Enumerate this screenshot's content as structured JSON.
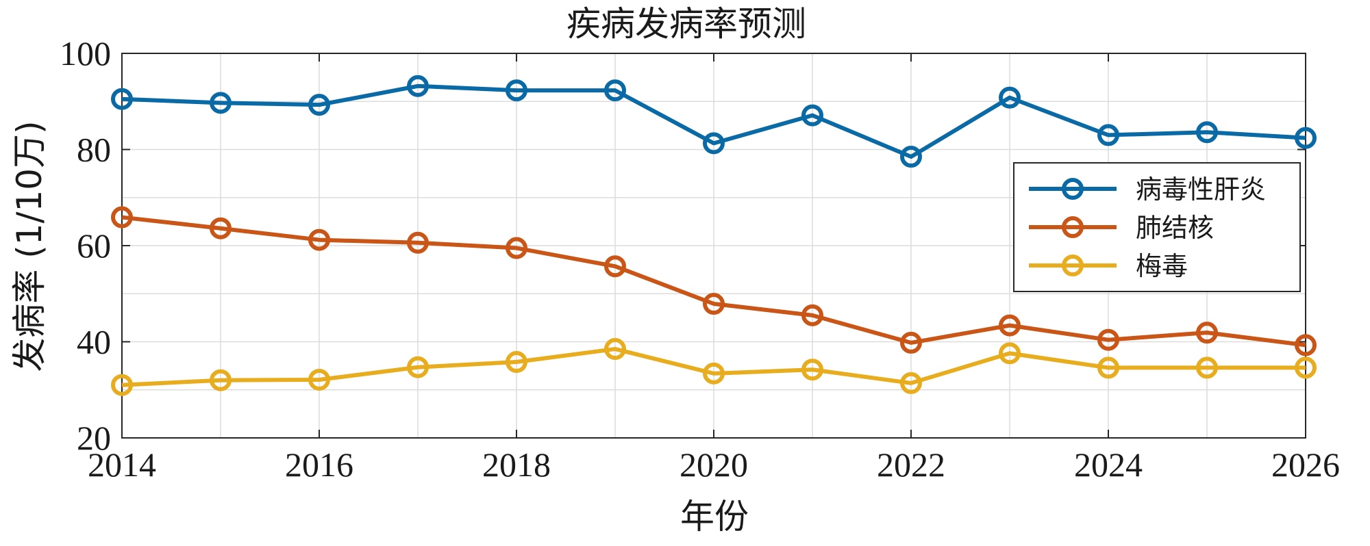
{
  "chart_data": {
    "type": "line",
    "title": "疾病发病率预测",
    "xlabel": "年份",
    "ylabel": "发病率 (1/10万)",
    "xlim": [
      2014,
      2026
    ],
    "ylim": [
      20,
      100
    ],
    "xticks": [
      "2014",
      "2016",
      "2018",
      "2020",
      "2022",
      "2024",
      "2026"
    ],
    "yticks": [
      "20",
      "40",
      "60",
      "80",
      "100"
    ],
    "grid": true,
    "legend_position": "right",
    "marker": "circle",
    "x": [
      2014,
      2015,
      2016,
      2017,
      2018,
      2019,
      2020,
      2021,
      2022,
      2023,
      2024,
      2025,
      2026
    ],
    "series": [
      {
        "name": "病毒性肝炎",
        "color": "#0a6aa5",
        "values": [
          90.5,
          89.7,
          89.3,
          93.2,
          92.3,
          92.3,
          81.3,
          87.1,
          78.5,
          90.8,
          83.0,
          83.6,
          82.4
        ]
      },
      {
        "name": "肺结核",
        "color": "#c95517",
        "values": [
          65.9,
          63.6,
          61.2,
          60.6,
          59.5,
          55.7,
          47.9,
          45.5,
          39.8,
          43.4,
          40.4,
          41.9,
          39.3
        ]
      },
      {
        "name": "梅毒",
        "color": "#e8ad1e",
        "values": [
          31.0,
          32.0,
          32.1,
          34.7,
          35.8,
          38.5,
          33.4,
          34.2,
          31.4,
          37.6,
          34.6,
          34.6,
          34.6
        ]
      }
    ]
  }
}
